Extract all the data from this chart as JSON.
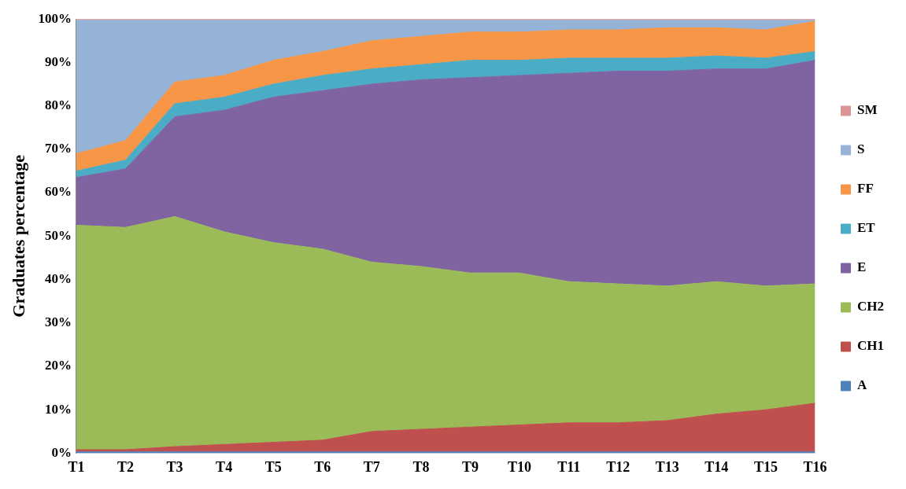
{
  "chart_data": {
    "type": "area",
    "stacked": true,
    "ylabel": "Graduates percentage",
    "legend": "right",
    "grid": false,
    "categories": [
      "T1",
      "T2",
      "T3",
      "T4",
      "T5",
      "T6",
      "T7",
      "T8",
      "T9",
      "T10",
      "T11",
      "T12",
      "T13",
      "T14",
      "T15",
      "T16"
    ],
    "ylim": [
      0,
      100
    ],
    "yticks": [
      {
        "value": 0,
        "label": "0%"
      },
      {
        "value": 10,
        "label": "10%"
      },
      {
        "value": 20,
        "label": "20%"
      },
      {
        "value": 30,
        "label": "30%"
      },
      {
        "value": 40,
        "label": "40%"
      },
      {
        "value": 50,
        "label": "50%"
      },
      {
        "value": 60,
        "label": "60%"
      },
      {
        "value": 70,
        "label": "70%"
      },
      {
        "value": 80,
        "label": "80%"
      },
      {
        "value": 90,
        "label": "90%"
      },
      {
        "value": 100,
        "label": "100%"
      }
    ],
    "series": [
      {
        "name": "A",
        "color": "#4f81bd",
        "values": [
          0.3,
          0.3,
          0.3,
          0.3,
          0.3,
          0.3,
          0.3,
          0.3,
          0.3,
          0.3,
          0.3,
          0.3,
          0.3,
          0.3,
          0.3,
          0.3
        ]
      },
      {
        "name": "CH1",
        "color": "#c0504d",
        "values": [
          0.5,
          0.5,
          1.2,
          1.7,
          2.2,
          2.7,
          4.7,
          5.2,
          5.7,
          6.2,
          6.7,
          6.7,
          7.2,
          8.7,
          9.7,
          11.2
        ]
      },
      {
        "name": "CH2",
        "color": "#9bbb59",
        "values": [
          51.7,
          51.2,
          53,
          49,
          46,
          44,
          39,
          37.5,
          35.5,
          35,
          32.5,
          32,
          31,
          30.5,
          28.5,
          27.5
        ]
      },
      {
        "name": "E",
        "color": "#8064a2",
        "values": [
          11,
          13.5,
          23,
          28,
          33.5,
          36.5,
          41,
          43,
          45,
          45.5,
          48,
          49,
          49.5,
          49,
          50,
          51.5
        ]
      },
      {
        "name": "ET",
        "color": "#4bacc6",
        "values": [
          1.5,
          2,
          3,
          3,
          3,
          3.5,
          3.5,
          3.5,
          4,
          3.5,
          3.5,
          3,
          3,
          3,
          2.5,
          2
        ]
      },
      {
        "name": "FF",
        "color": "#f79646",
        "values": [
          4,
          4.5,
          5,
          5,
          5.5,
          5.5,
          6.5,
          6.5,
          6.5,
          6.5,
          6.5,
          6.5,
          7,
          6.5,
          6.5,
          7
        ]
      },
      {
        "name": "S",
        "color": "#95b3d7",
        "values": [
          30.7,
          27.7,
          14.2,
          12.7,
          9.2,
          7.2,
          4.7,
          3.7,
          2.7,
          2.7,
          2.2,
          2.2,
          1.7,
          1.7,
          2.2,
          0.2
        ]
      },
      {
        "name": "SM",
        "color": "#d99694",
        "values": [
          0.3,
          0.3,
          0.3,
          0.3,
          0.3,
          0.3,
          0.3,
          0.3,
          0.3,
          0.3,
          0.3,
          0.3,
          0.3,
          0.3,
          0.3,
          0.3
        ]
      }
    ]
  }
}
